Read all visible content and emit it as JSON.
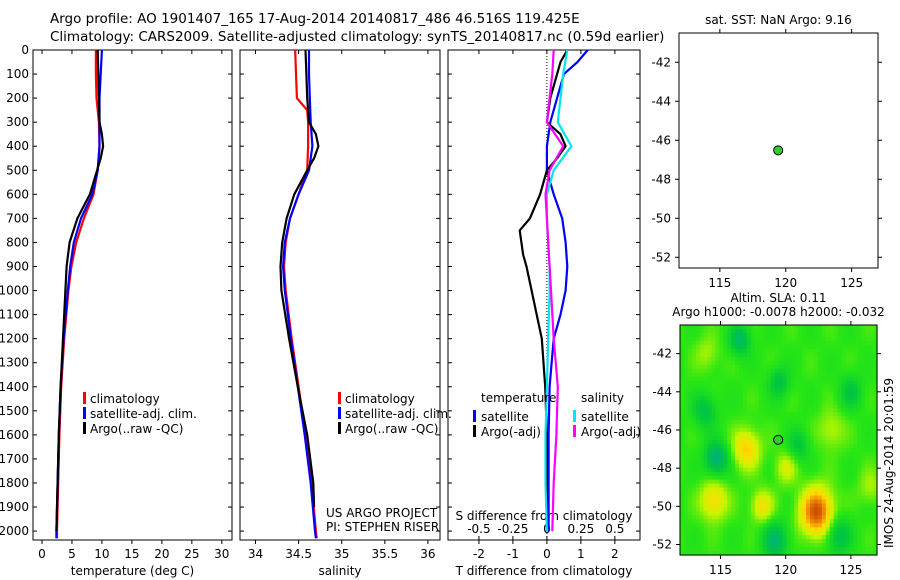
{
  "header": {
    "line1": "Argo profile: AO 1901407_165 17-Aug-2014 20140817_486 46.516S 119.425E",
    "line2": "Climatology: CARS2009. Satellite-adjusted climatology: synTS_20140817.nc (0.59d earlier)"
  },
  "credit": "IMOS 24-Aug-2014 20:01:59",
  "chart_data": [
    {
      "type": "line",
      "id": "temperature",
      "xlabel": "temperature (deg C)",
      "ylabel": "",
      "xlim": [
        -1.5,
        31.7
      ],
      "ylim": [
        2037,
        0
      ],
      "xticks": [
        0,
        5,
        10,
        15,
        20,
        25,
        30
      ],
      "yticks": [
        0,
        100,
        200,
        300,
        400,
        500,
        600,
        700,
        800,
        900,
        1000,
        1100,
        1200,
        1300,
        1400,
        1500,
        1600,
        1700,
        1800,
        1900,
        2000
      ],
      "legend": [
        "climatology",
        "satellite-adj. clim.",
        "Argo(..raw -QC)"
      ],
      "series": [
        {
          "name": "climatology",
          "color": "#ff0000",
          "depth": [
            0,
            100,
            200,
            300,
            400,
            500,
            600,
            700,
            800,
            900,
            1000,
            1200,
            1400,
            1600,
            1800,
            2000,
            2030
          ],
          "values": [
            9.0,
            9.0,
            9.1,
            9.5,
            9.6,
            9.3,
            8.6,
            7.0,
            5.7,
            4.9,
            4.4,
            3.7,
            3.2,
            2.9,
            2.7,
            2.5,
            2.5
          ]
        },
        {
          "name": "satellite-adj. clim.",
          "color": "#0000ff",
          "depth": [
            0,
            100,
            200,
            300,
            400,
            500,
            600,
            700,
            800,
            900,
            1000,
            1200,
            1400,
            1600,
            1800,
            2000,
            2030
          ],
          "values": [
            10.0,
            9.8,
            9.6,
            9.6,
            9.6,
            9.3,
            8.4,
            6.5,
            5.3,
            4.7,
            4.3,
            3.6,
            3.1,
            2.8,
            2.6,
            2.4,
            2.4
          ]
        },
        {
          "name": "Argo(..raw -QC)",
          "color": "#000000",
          "depth": [
            0,
            100,
            200,
            300,
            350,
            400,
            450,
            500,
            600,
            700,
            800,
            900,
            1000,
            1200,
            1400,
            1600,
            1800,
            2000
          ],
          "values": [
            9.3,
            9.4,
            9.5,
            9.6,
            10.0,
            10.2,
            9.8,
            9.2,
            8.0,
            5.9,
            4.6,
            4.1,
            3.9,
            3.5,
            3.1,
            2.8,
            2.6,
            2.4
          ]
        }
      ]
    },
    {
      "type": "line",
      "id": "salinity",
      "xlabel": "salinity",
      "xlim": [
        33.82,
        36.14
      ],
      "ylim": [
        2037,
        0
      ],
      "xticks": [
        34,
        34.5,
        35,
        35.5,
        36
      ],
      "xticklabels": [
        "34",
        "34.5",
        "35",
        "35.5",
        "36"
      ],
      "legend": [
        "climatology",
        "satellite-adj. clim.",
        "Argo(..raw -QC)"
      ],
      "annotations": [
        "US ARGO PROJECT",
        "PI: STEPHEN RISER"
      ],
      "series": [
        {
          "name": "climatology",
          "color": "#ff0000",
          "depth": [
            0,
            100,
            200,
            250,
            300,
            400,
            500,
            600,
            700,
            800,
            900,
            1000,
            1200,
            1400,
            1600,
            1800,
            2000,
            2030
          ],
          "values": [
            34.46,
            34.47,
            34.48,
            34.6,
            34.61,
            34.61,
            34.6,
            34.5,
            34.4,
            34.35,
            34.33,
            34.35,
            34.42,
            34.5,
            34.58,
            34.65,
            34.7,
            34.71
          ]
        },
        {
          "name": "satellite-adj. clim.",
          "color": "#0000ff",
          "depth": [
            0,
            100,
            200,
            300,
            400,
            500,
            600,
            700,
            800,
            900,
            1000,
            1200,
            1400,
            1600,
            1800,
            2000,
            2030
          ],
          "values": [
            34.62,
            34.62,
            34.63,
            34.64,
            34.66,
            34.62,
            34.5,
            34.4,
            34.34,
            34.32,
            34.34,
            34.41,
            34.49,
            34.57,
            34.64,
            34.69,
            34.7
          ]
        },
        {
          "name": "Argo(..raw -QC)",
          "color": "#000000",
          "depth": [
            0,
            100,
            200,
            300,
            350,
            400,
            450,
            500,
            600,
            700,
            800,
            900,
            1000,
            1200,
            1400,
            1600,
            1800,
            1900
          ],
          "values": [
            34.58,
            34.59,
            34.6,
            34.62,
            34.7,
            34.73,
            34.68,
            34.6,
            34.45,
            34.36,
            34.31,
            34.29,
            34.3,
            34.39,
            34.49,
            34.6,
            34.67,
            34.68
          ]
        }
      ]
    },
    {
      "type": "line",
      "id": "difference",
      "xlabel": "T difference from climatology",
      "x2label": "S difference from climatology",
      "xlim": [
        -2.91,
        2.74
      ],
      "x2lim": [
        -0.5,
        0.5
      ],
      "ylim": [
        2037,
        0
      ],
      "xticks": [
        -2,
        -1,
        0,
        1,
        2
      ],
      "xticklabels": [
        "-2",
        "-1",
        "0",
        "1",
        "2"
      ],
      "x2ticks": [
        -0.5,
        -0.25,
        0,
        0.25,
        0.5
      ],
      "x2ticklabels": [
        "-0.5",
        "-0.25",
        "0",
        "0.25",
        "0.5"
      ],
      "legend_groups": {
        "temperature": "temperature",
        "salinity": "salinity"
      },
      "legend": [
        "satellite",
        "Argo(-adj)",
        "satellite",
        "Argo(-adj)"
      ],
      "series": [
        {
          "name": "T satellite",
          "axis": "T",
          "color": "#0000ff",
          "depth": [
            0,
            50,
            100,
            200,
            300,
            400,
            500,
            600,
            700,
            800,
            900,
            1000,
            1100,
            1200,
            1400,
            1600,
            1800,
            2000
          ],
          "values": [
            1.2,
            0.9,
            0.5,
            0.3,
            0.1,
            0.0,
            0.0,
            0.2,
            0.45,
            0.55,
            0.6,
            0.55,
            0.4,
            0.2,
            0.08,
            0.05,
            0.05,
            0.05
          ]
        },
        {
          "name": "T Argo(-adj)",
          "axis": "T",
          "color": "#000000",
          "depth": [
            0,
            50,
            100,
            200,
            300,
            350,
            400,
            450,
            500,
            600,
            700,
            750,
            800,
            850,
            900,
            1000,
            1100,
            1200,
            1400,
            1600,
            1800,
            2000
          ],
          "values": [
            0.6,
            0.4,
            0.3,
            0.1,
            0.0,
            0.4,
            0.55,
            0.3,
            0.0,
            -0.2,
            -0.5,
            -0.8,
            -0.75,
            -0.7,
            -0.6,
            -0.45,
            -0.3,
            -0.15,
            -0.05,
            0.0,
            0.0,
            0.0
          ]
        },
        {
          "name": "S satellite",
          "axis": "S",
          "color": "#00e5ee",
          "depth": [
            0,
            100,
            200,
            300,
            400,
            500,
            600,
            700,
            800,
            900,
            1000,
            1200,
            1400,
            1600,
            1800,
            2000
          ],
          "values": [
            0.15,
            0.12,
            0.1,
            0.08,
            0.18,
            0.05,
            0.0,
            0.0,
            0.01,
            0.02,
            0.02,
            0.01,
            0.0,
            -0.01,
            -0.01,
            0.0
          ]
        },
        {
          "name": "S Argo(-adj)",
          "axis": "S",
          "color": "#ff00ff",
          "depth": [
            0,
            100,
            200,
            300,
            400,
            500,
            600,
            700,
            800,
            900,
            1000,
            1200,
            1400,
            1600,
            1800,
            2000
          ],
          "values": [
            0.05,
            0.04,
            0.02,
            0.0,
            0.12,
            0.02,
            -0.01,
            0.0,
            0.01,
            0.02,
            0.03,
            0.05,
            0.08,
            0.07,
            0.05,
            0.04
          ]
        }
      ]
    },
    {
      "type": "scatter",
      "id": "sst-map",
      "title": "sat. SST: NaN Argo: 9.16",
      "xlim": [
        111.9,
        127.0
      ],
      "ylim": [
        -52.55,
        -40.5
      ],
      "xticks": [
        115,
        120,
        125
      ],
      "yticks": [
        -42,
        -44,
        -46,
        -48,
        -50,
        -52
      ],
      "point": {
        "lon": 119.425,
        "lat": -46.516,
        "color": "#33cc33"
      }
    },
    {
      "type": "heatmap",
      "id": "sla-map",
      "title": "Altim. SLA: 0.11",
      "subtitle": "Argo h1000: -0.0078 h2000: -0.032",
      "xlim": [
        111.9,
        127.0
      ],
      "ylim": [
        -52.55,
        -40.5
      ],
      "xticks": [
        115,
        120,
        125
      ],
      "yticks": [
        -42,
        -44,
        -46,
        -48,
        -50,
        -52
      ],
      "point": {
        "lon": 119.425,
        "lat": -46.516,
        "color": "#33cc33"
      },
      "anomalies": [
        {
          "lon": 122.4,
          "lat": -50.3,
          "amp": 1.0,
          "r": 1.2
        },
        {
          "lon": 117.0,
          "lat": -47.0,
          "amp": 0.55,
          "r": 1.0
        },
        {
          "lon": 114.5,
          "lat": -49.7,
          "amp": 0.5,
          "r": 1.0
        },
        {
          "lon": 118.2,
          "lat": -50.0,
          "amp": 0.45,
          "r": 0.8
        },
        {
          "lon": 120.0,
          "lat": -48.0,
          "amp": 0.3,
          "r": 0.8
        },
        {
          "lon": 114.7,
          "lat": -47.5,
          "amp": -0.55,
          "r": 0.9
        },
        {
          "lon": 116.5,
          "lat": -41.3,
          "amp": -0.45,
          "r": 0.8
        },
        {
          "lon": 119.2,
          "lat": -51.8,
          "amp": -0.45,
          "r": 1.0
        },
        {
          "lon": 124.0,
          "lat": -51.5,
          "amp": -0.4,
          "r": 1.0
        },
        {
          "lon": 113.8,
          "lat": -45.0,
          "amp": -0.35,
          "r": 0.9
        },
        {
          "lon": 119.5,
          "lat": -43.5,
          "amp": -0.35,
          "r": 0.8
        },
        {
          "lon": 125.0,
          "lat": -44.0,
          "amp": -0.3,
          "r": 0.9
        },
        {
          "lon": 121.0,
          "lat": -46.8,
          "amp": -0.3,
          "r": 0.8
        },
        {
          "lon": 114.0,
          "lat": -42.0,
          "amp": 0.2,
          "r": 0.9
        },
        {
          "lon": 123.5,
          "lat": -46.0,
          "amp": 0.25,
          "r": 1.0
        },
        {
          "lon": 126.5,
          "lat": -49.0,
          "amp": 0.2,
          "r": 0.9
        }
      ]
    }
  ]
}
